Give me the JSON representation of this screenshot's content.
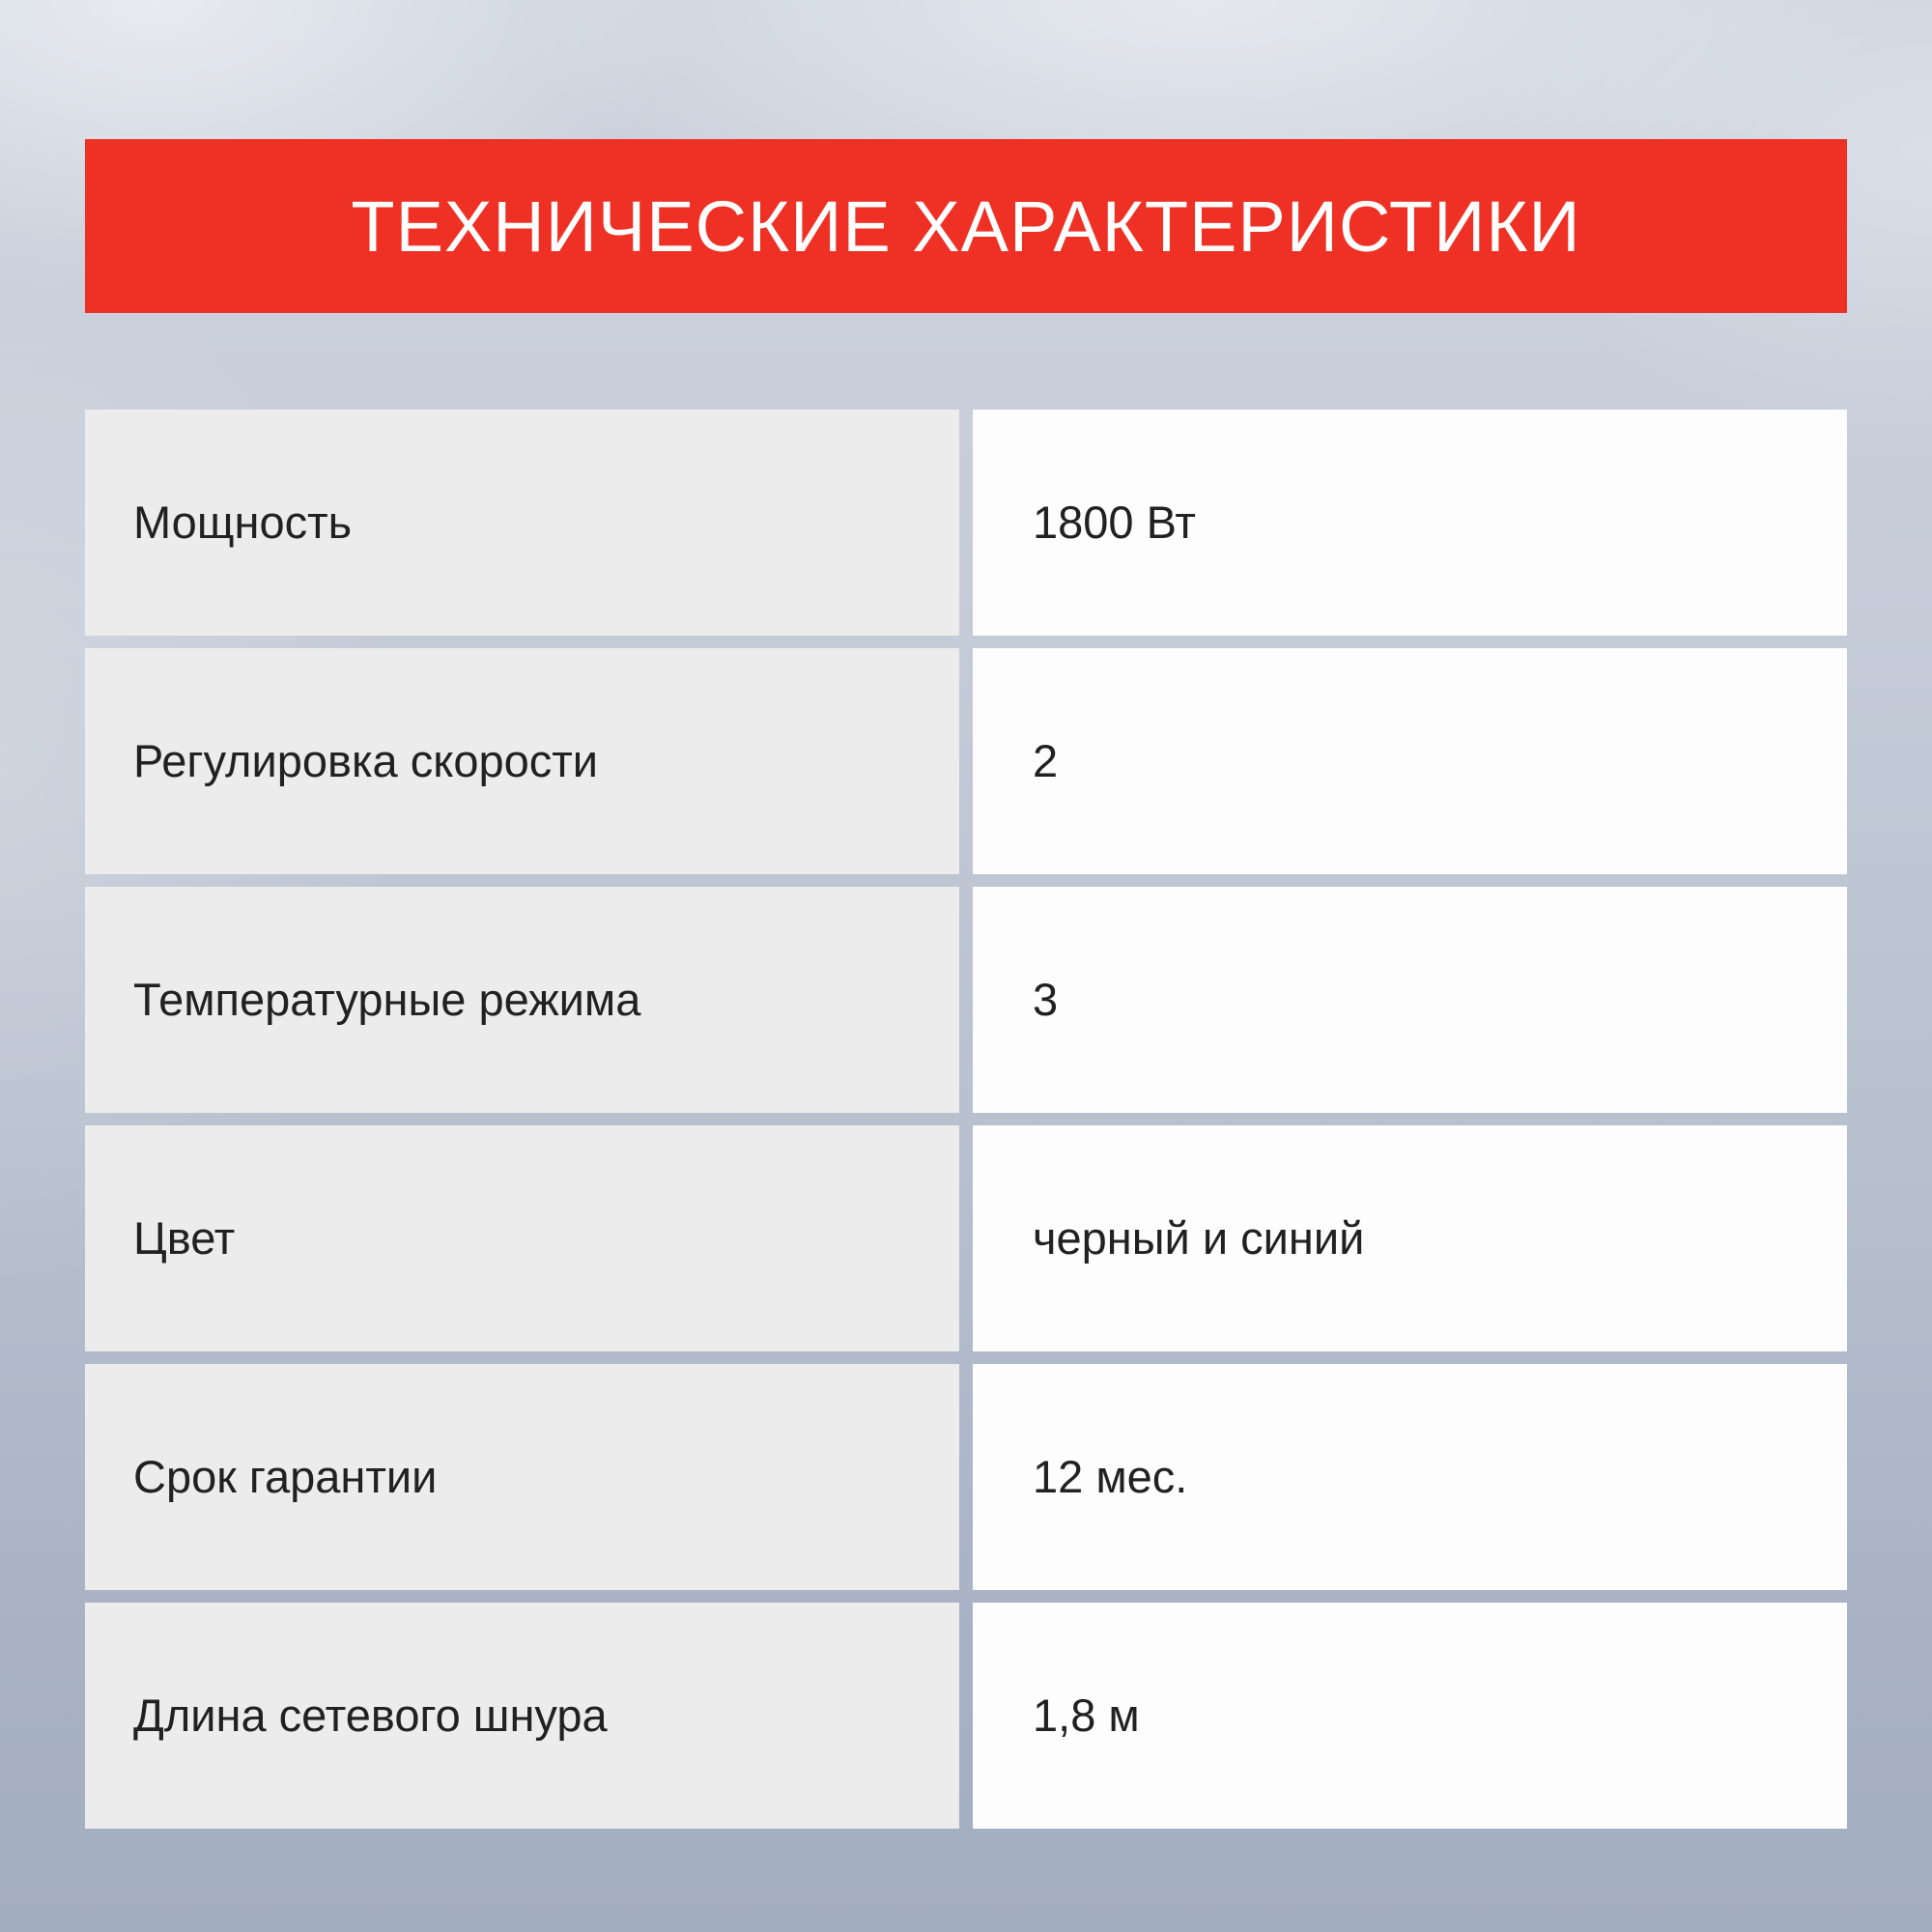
{
  "header": {
    "title": "ТЕХНИЧЕСКИЕ ХАРАКТЕРИСТИКИ"
  },
  "table": {
    "rows": [
      {
        "label": "Мощность",
        "value": "1800 Вт"
      },
      {
        "label": "Регулировка скорости",
        "value": "2"
      },
      {
        "label": "Температурные режима",
        "value": "3"
      },
      {
        "label": "Цвет",
        "value": "черный и синий"
      },
      {
        "label": "Срок гарантии",
        "value": "12 мес."
      },
      {
        "label": "Длина сетевого шнура",
        "value": "1,8 м"
      }
    ]
  },
  "colors": {
    "accent_red": "#ee3124",
    "banner_text": "#ffffff",
    "label_cell_bg": "#ececec",
    "value_cell_bg": "#fdfdfd",
    "row_text": "#212121",
    "background_top": "#ccd3de",
    "background_bottom": "#a3adc0"
  }
}
